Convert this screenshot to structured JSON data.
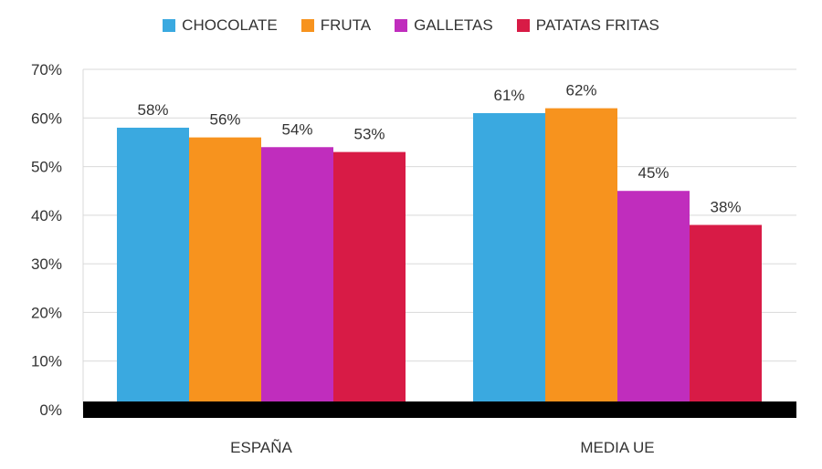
{
  "chart_data": {
    "type": "bar",
    "categories": [
      "ESPAÑA",
      "MEDIA UE"
    ],
    "series": [
      {
        "name": "CHOCOLATE",
        "color": "#3AA9E0",
        "values": [
          58,
          61
        ]
      },
      {
        "name": "FRUTA",
        "color": "#F7931E",
        "values": [
          56,
          62
        ]
      },
      {
        "name": "GALLETAS",
        "color": "#C02DBD",
        "values": [
          54,
          45
        ]
      },
      {
        "name": "PATATAS FRITAS",
        "color": "#D81B46",
        "values": [
          53,
          38
        ]
      }
    ],
    "value_labels": [
      [
        "58%",
        "61%"
      ],
      [
        "56%",
        "62%"
      ],
      [
        "54%",
        "45%"
      ],
      [
        "53%",
        "38%"
      ]
    ],
    "ylim": [
      0,
      70
    ],
    "yticks": [
      "0%",
      "10%",
      "20%",
      "30%",
      "40%",
      "50%",
      "60%",
      "70%"
    ],
    "grid": true,
    "legend": "top"
  }
}
